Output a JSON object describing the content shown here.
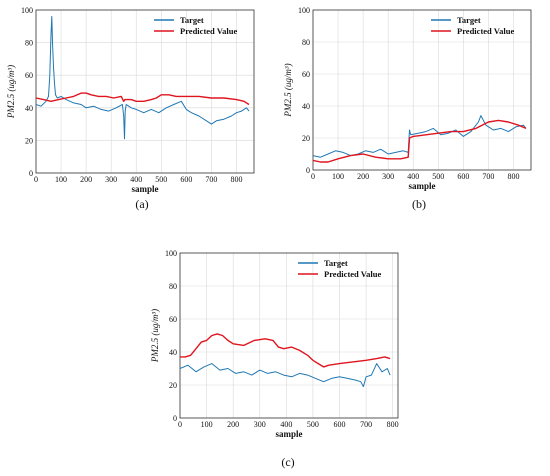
{
  "colors": {
    "target": "#1f77b4",
    "predicted": "#e0141e"
  },
  "chart_data": [
    {
      "type": "line",
      "panel_label": "(a)",
      "xlabel": "sample",
      "ylabel": "PM2.5 (ug/m³)",
      "xlim": [
        0,
        870
      ],
      "ylim": [
        0,
        100
      ],
      "xticks": [
        0,
        100,
        200,
        300,
        400,
        500,
        600,
        700,
        800
      ],
      "yticks": [
        0,
        20,
        40,
        60,
        80,
        100
      ],
      "grid": true,
      "legend": "top-right",
      "series": [
        {
          "name": "Target",
          "x": [
            0,
            20,
            40,
            50,
            55,
            60,
            63,
            66,
            70,
            74,
            78,
            85,
            100,
            120,
            150,
            180,
            200,
            230,
            260,
            290,
            320,
            345,
            350,
            353,
            356,
            360,
            380,
            400,
            430,
            460,
            490,
            520,
            550,
            580,
            600,
            620,
            650,
            680,
            700,
            720,
            750,
            780,
            800,
            820,
            840,
            850
          ],
          "values": [
            42,
            41,
            44,
            47,
            60,
            85,
            96,
            80,
            65,
            55,
            48,
            46,
            47,
            45,
            43,
            42,
            40,
            41,
            39,
            38,
            40,
            42,
            35,
            21,
            38,
            42,
            40,
            39,
            37,
            39,
            37,
            40,
            42,
            44,
            39,
            37,
            35,
            32,
            30,
            32,
            33,
            35,
            37,
            38,
            40,
            38
          ]
        },
        {
          "name": "Predicted Value",
          "x": [
            0,
            30,
            60,
            90,
            120,
            150,
            180,
            200,
            220,
            250,
            280,
            310,
            340,
            350,
            355,
            360,
            380,
            400,
            430,
            460,
            480,
            500,
            530,
            560,
            600,
            650,
            700,
            750,
            800,
            830,
            850
          ],
          "values": [
            46,
            45,
            44,
            45,
            46,
            47,
            49,
            49,
            48,
            47,
            47,
            46,
            47,
            44,
            45,
            45,
            45,
            44,
            44,
            45,
            46,
            48,
            48,
            47,
            47,
            47,
            46,
            46,
            45,
            44,
            42
          ]
        }
      ]
    },
    {
      "type": "line",
      "panel_label": "(b)",
      "xlabel": "sample",
      "ylabel": "PM2.5 (ug/m³)",
      "xlim": [
        0,
        870
      ],
      "ylim": [
        0,
        100
      ],
      "xticks": [
        0,
        100,
        200,
        300,
        400,
        500,
        600,
        700,
        800
      ],
      "yticks": [
        0,
        20,
        40,
        60,
        80,
        100
      ],
      "grid": true,
      "legend": "top-right",
      "series": [
        {
          "name": "Target",
          "x": [
            0,
            30,
            60,
            90,
            120,
            150,
            180,
            210,
            240,
            270,
            300,
            330,
            360,
            380,
            385,
            390,
            420,
            450,
            480,
            510,
            540,
            570,
            600,
            630,
            660,
            670,
            690,
            720,
            750,
            780,
            810,
            840,
            850
          ],
          "values": [
            9,
            8,
            10,
            12,
            11,
            9,
            10,
            12,
            11,
            13,
            10,
            11,
            12,
            11,
            25,
            22,
            23,
            24,
            26,
            22,
            23,
            25,
            21,
            24,
            30,
            34,
            28,
            25,
            26,
            24,
            27,
            28,
            26
          ]
        },
        {
          "name": "Predicted Value",
          "x": [
            0,
            30,
            60,
            100,
            150,
            200,
            250,
            300,
            350,
            380,
            385,
            400,
            450,
            500,
            550,
            600,
            650,
            700,
            740,
            780,
            820,
            850
          ],
          "values": [
            6,
            5,
            5,
            7,
            9,
            10,
            8,
            7,
            7,
            8,
            20,
            21,
            22,
            23,
            24,
            24,
            26,
            30,
            31,
            30,
            28,
            26
          ]
        }
      ]
    },
    {
      "type": "line",
      "panel_label": "(c)",
      "xlabel": "sample",
      "ylabel": "PM2.5 (ug/m³)",
      "xlim": [
        0,
        820
      ],
      "ylim": [
        0,
        100
      ],
      "xticks": [
        0,
        100,
        200,
        300,
        400,
        500,
        600,
        700,
        800
      ],
      "yticks": [
        0,
        20,
        40,
        60,
        80,
        100
      ],
      "grid": true,
      "legend": "top-right",
      "series": [
        {
          "name": "Target",
          "x": [
            0,
            30,
            60,
            90,
            120,
            150,
            180,
            210,
            240,
            270,
            300,
            330,
            360,
            390,
            420,
            450,
            480,
            510,
            540,
            570,
            600,
            630,
            660,
            680,
            690,
            700,
            720,
            740,
            760,
            780,
            790
          ],
          "values": [
            30,
            32,
            28,
            31,
            33,
            29,
            30,
            27,
            28,
            26,
            29,
            27,
            28,
            26,
            25,
            27,
            26,
            24,
            22,
            24,
            25,
            24,
            23,
            22,
            19,
            25,
            26,
            33,
            28,
            30,
            26
          ]
        },
        {
          "name": "Predicted Value",
          "x": [
            0,
            20,
            40,
            60,
            80,
            100,
            120,
            140,
            160,
            180,
            200,
            240,
            280,
            320,
            350,
            370,
            390,
            420,
            450,
            480,
            500,
            520,
            540,
            560,
            600,
            650,
            700,
            740,
            770,
            790
          ],
          "values": [
            37,
            37,
            38,
            42,
            46,
            47,
            50,
            51,
            50,
            47,
            45,
            44,
            47,
            48,
            47,
            43,
            42,
            43,
            41,
            38,
            35,
            33,
            31,
            32,
            33,
            34,
            35,
            36,
            37,
            36
          ]
        }
      ]
    }
  ]
}
